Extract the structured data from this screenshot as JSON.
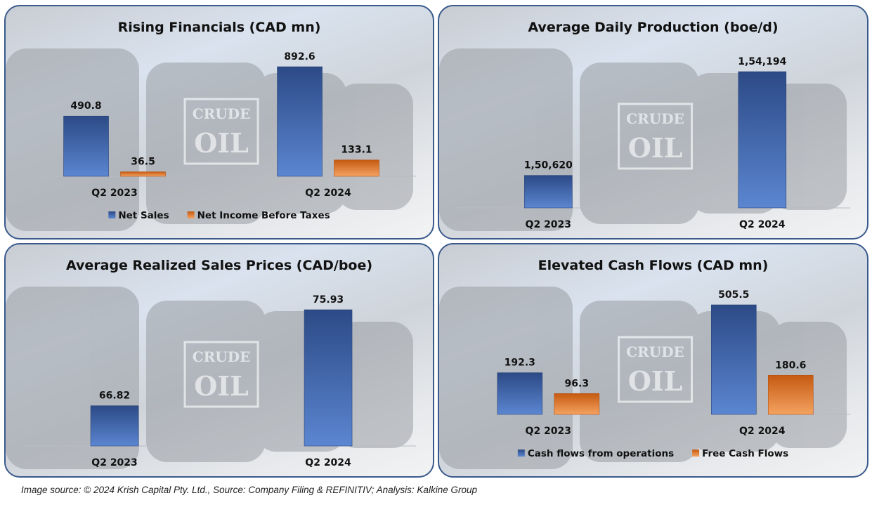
{
  "colors": {
    "blue_dark": "#2c4a86",
    "blue_light": "#5b86d1",
    "orange_dark": "#c55a11",
    "orange_light": "#f4a261",
    "border": "#3a5a8c"
  },
  "background_text": [
    "CRUDE",
    "OIL"
  ],
  "chart_data": [
    {
      "type": "bar",
      "title": "Rising Financials (CAD mn)",
      "categories": [
        "Q2 2023",
        "Q2 2024"
      ],
      "series": [
        {
          "name": "Net Sales",
          "color": "blue",
          "values": [
            490.8,
            892.6
          ],
          "labels": [
            "490.8",
            "892.6"
          ]
        },
        {
          "name": "Net Income Before Taxes",
          "color": "orange",
          "values": [
            36.5,
            133.1
          ],
          "labels": [
            "36.5",
            "133.1"
          ]
        }
      ],
      "legend": "bottom",
      "ylim": [
        0,
        892.6
      ]
    },
    {
      "type": "bar",
      "title": "Average Daily Production (boe/d)",
      "categories": [
        "Q2 2023",
        "Q2 2024"
      ],
      "series": [
        {
          "name": "Average Daily Production",
          "color": "blue",
          "values": [
            150620,
            154194
          ],
          "labels": [
            "1,50,620",
            "1,54,194"
          ]
        }
      ],
      "legend": "none",
      "ylim": [
        149500,
        154194
      ]
    },
    {
      "type": "bar",
      "title": "Average Realized Sales Prices (CAD/boe)",
      "categories": [
        "Q2 2023",
        "Q2 2024"
      ],
      "series": [
        {
          "name": "Average Realized Sales Price",
          "color": "blue",
          "values": [
            66.82,
            75.93
          ],
          "labels": [
            "66.82",
            "75.93"
          ]
        }
      ],
      "legend": "none",
      "ylim": [
        63,
        75.93
      ]
    },
    {
      "type": "bar",
      "title": "Elevated Cash Flows (CAD mn)",
      "categories": [
        "Q2 2023",
        "Q2 2024"
      ],
      "series": [
        {
          "name": "Cash flows from operations",
          "color": "blue",
          "values": [
            192.3,
            505.5
          ],
          "labels": [
            "192.3",
            "505.5"
          ]
        },
        {
          "name": "Free Cash Flows",
          "color": "orange",
          "values": [
            96.3,
            180.6
          ],
          "labels": [
            "96.3",
            "180.6"
          ]
        }
      ],
      "legend": "bottom",
      "ylim": [
        0,
        505.5
      ]
    }
  ],
  "footer": "Image source: © 2024 Krish Capital Pty. Ltd., Source: Company Filing & REFINITIV; Analysis: Kalkine Group"
}
